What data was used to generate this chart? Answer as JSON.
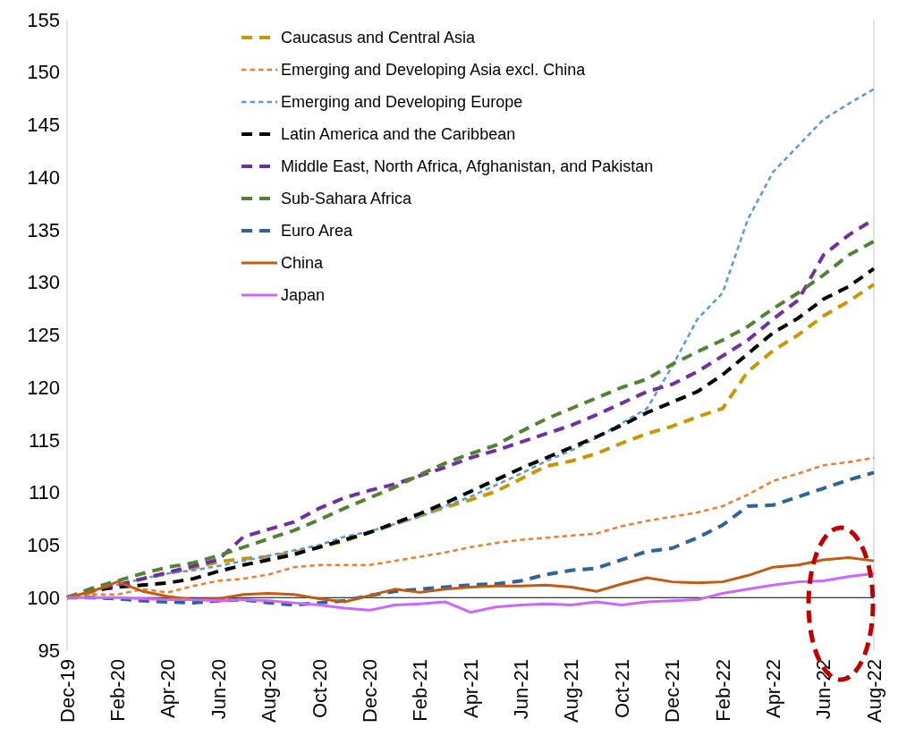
{
  "chart_data": {
    "type": "line",
    "categories": [
      "Dec-19",
      null,
      "Feb-20",
      null,
      "Apr-20",
      null,
      "Jun-20",
      null,
      "Aug-20",
      null,
      "Oct-20",
      null,
      "Dec-20",
      null,
      "Feb-21",
      null,
      "Apr-21",
      null,
      "Jun-21",
      null,
      "Aug-21",
      null,
      "Oct-21",
      null,
      "Dec-21",
      null,
      "Feb-22",
      null,
      "Apr-22",
      null,
      "Jun-22",
      null,
      "Aug-22"
    ],
    "ylim": [
      95,
      155
    ],
    "yticks": [
      95,
      100,
      105,
      110,
      115,
      120,
      125,
      130,
      135,
      140,
      145,
      150,
      155
    ],
    "grid": false,
    "legend": "top",
    "marker": "none",
    "ref_lines": [
      {
        "axis": "y",
        "value": 100,
        "color": "#000000",
        "line_style": "solid"
      }
    ],
    "series": [
      {
        "name": "Caucasus and Central Asia",
        "color": "#c99700",
        "line_style": "dashed",
        "values": [
          100,
          100.5,
          101.2,
          101.8,
          102.3,
          102.8,
          103.4,
          103.7,
          103.9,
          104.3,
          104.8,
          105.4,
          106.2,
          107,
          107.8,
          108.6,
          109.3,
          110.1,
          111.3,
          112.5,
          113,
          113.7,
          114.7,
          115.6,
          116.3,
          117.2,
          118,
          121.5,
          123.5,
          125,
          126.8,
          128.2,
          129.8
        ]
      },
      {
        "name": "Emerging and Developing Asia excl. China",
        "color": "#ed7d31",
        "line_style": "dotted",
        "values": [
          100,
          100.3,
          100.3,
          100.8,
          100.5,
          101.1,
          101.6,
          101.8,
          102.2,
          102.9,
          103.1,
          103.1,
          103.1,
          103.5,
          103.9,
          104.3,
          104.8,
          105.2,
          105.5,
          105.7,
          105.9,
          106.1,
          106.8,
          107.3,
          107.7,
          108.1,
          108.7,
          109.8,
          111.1,
          111.8,
          112.6,
          112.9,
          113.3
        ]
      },
      {
        "name": "Emerging and Developing Europe",
        "color": "#5b9bd5",
        "line_style": "dotted",
        "values": [
          100,
          100.6,
          101.2,
          101.8,
          102.3,
          102.6,
          103,
          103.5,
          104,
          104.5,
          105,
          105.8,
          106.3,
          107,
          107.7,
          108.7,
          109.6,
          110.7,
          111.8,
          113,
          114,
          115.2,
          116.6,
          118,
          122,
          126.5,
          129,
          136,
          140.5,
          143,
          145.5,
          147,
          148.4
        ]
      },
      {
        "name": "Latin America and the Caribbean",
        "color": "#000000",
        "line_style": "dashed",
        "values": [
          100,
          100.7,
          101,
          101.2,
          101.4,
          101.8,
          102.5,
          103.1,
          103.6,
          104.1,
          104.8,
          105.5,
          106.2,
          107.1,
          108,
          109,
          110.1,
          111.2,
          112.3,
          113.3,
          114.3,
          115.3,
          116.4,
          117.6,
          118.6,
          119.6,
          121.2,
          123.2,
          125.2,
          126.6,
          128.4,
          129.6,
          131.3
        ]
      },
      {
        "name": "Middle East, North Africa, Afghanistan, and Pakistan",
        "color": "#7030a0",
        "line_style": "dashed",
        "values": [
          100,
          100.8,
          101.2,
          101.8,
          102.4,
          103,
          103.6,
          105.8,
          106.5,
          107.2,
          108.5,
          109.5,
          110.2,
          110.8,
          111.6,
          112.4,
          113.3,
          114,
          114.8,
          115.6,
          116.4,
          117.4,
          118.5,
          119.6,
          120.3,
          121.5,
          123,
          124.5,
          126.5,
          128.3,
          132.6,
          134.5,
          136
        ]
      },
      {
        "name": "Sub-Sahara Africa",
        "color": "#548235",
        "line_style": "dashed",
        "values": [
          100,
          100.9,
          101.6,
          102.3,
          102.9,
          103.3,
          104,
          104.8,
          105.6,
          106.4,
          107.4,
          108.5,
          109.5,
          110.5,
          111.7,
          112.8,
          113.7,
          114.5,
          115.8,
          117,
          118,
          119,
          120,
          120.8,
          122.2,
          123.4,
          124.5,
          125.8,
          127.5,
          129,
          130.7,
          132.6,
          133.9
        ]
      },
      {
        "name": "Euro Area",
        "color": "#2e6496",
        "line_style": "dashed",
        "values": [
          100,
          100,
          99.9,
          99.7,
          99.6,
          99.5,
          99.7,
          99.8,
          99.5,
          99.3,
          99.5,
          99.7,
          100.2,
          100.6,
          100.8,
          101,
          101.2,
          101.3,
          101.6,
          102.2,
          102.6,
          102.8,
          103.6,
          104.4,
          104.7,
          105.7,
          106.9,
          108.7,
          108.8,
          109.6,
          110.4,
          111.2,
          111.9
        ]
      },
      {
        "name": "China",
        "color": "#c55a11",
        "line_style": "solid",
        "values": [
          100,
          100.6,
          101.5,
          100.6,
          100.1,
          99.8,
          99.9,
          100.3,
          100.4,
          100.3,
          99.9,
          99.6,
          100.2,
          100.8,
          100.5,
          100.8,
          101,
          101.1,
          101.1,
          101.2,
          101,
          100.6,
          101.3,
          101.9,
          101.5,
          101.4,
          101.5,
          102.1,
          102.9,
          103.1,
          103.6,
          103.8,
          103.5
        ]
      },
      {
        "name": "Japan",
        "color": "#cc66ff",
        "line_style": "solid",
        "values": [
          100,
          100,
          100,
          99.9,
          99.8,
          99.8,
          99.7,
          99.8,
          99.7,
          99.5,
          99.3,
          99,
          98.8,
          99.3,
          99.4,
          99.6,
          98.6,
          99.1,
          99.3,
          99.4,
          99.3,
          99.6,
          99.3,
          99.6,
          99.7,
          99.8,
          100.4,
          100.8,
          101.2,
          101.5,
          101.6,
          102,
          102.3
        ]
      }
    ]
  }
}
